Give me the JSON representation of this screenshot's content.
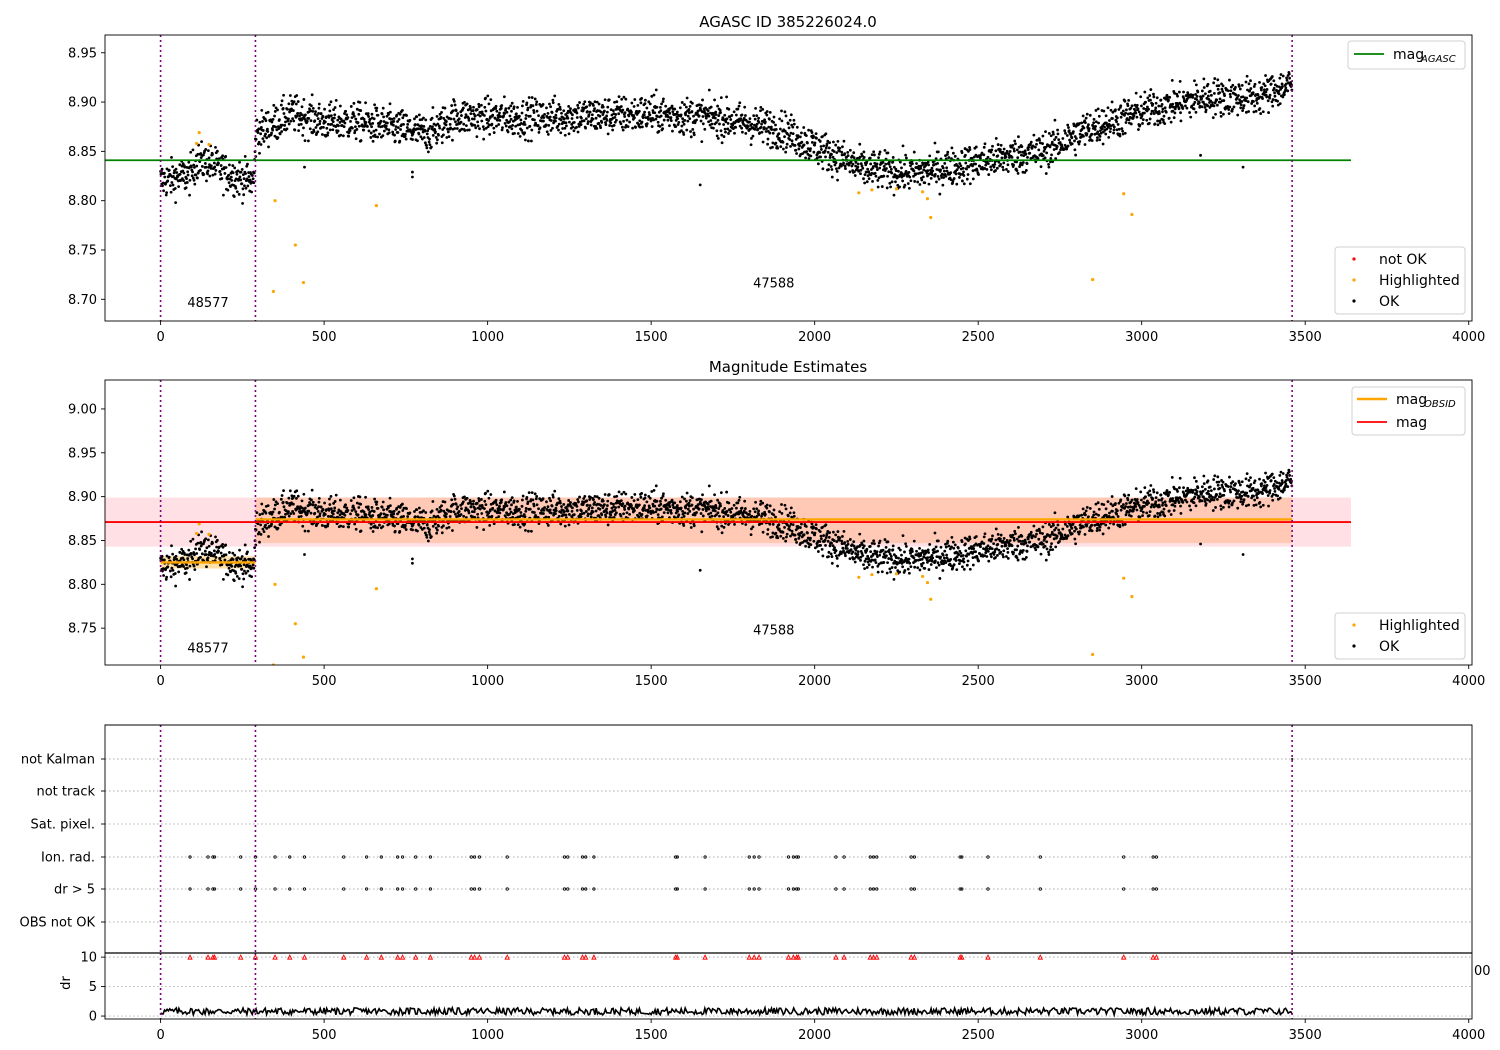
{
  "figure": {
    "title_top": "AGASC ID 385226024.0",
    "title_mid": "Magnitude Estimates"
  },
  "chart_data": [
    {
      "type": "scatter",
      "title": "AGASC ID 385226024.0",
      "xlim": [
        -170,
        4010
      ],
      "ylim": [
        8.678,
        8.968
      ],
      "xticks": [
        0,
        500,
        1000,
        1500,
        2000,
        2500,
        3000,
        3500,
        4000
      ],
      "yticks": [
        8.7,
        8.75,
        8.8,
        8.85,
        8.9,
        8.95
      ],
      "ytick_format": 2,
      "obsid_boundaries": [
        0,
        290,
        3460
      ],
      "obsid_labels": [
        {
          "text": "48577",
          "x": 145,
          "y": 8.692
        },
        {
          "text": "47588",
          "x": 1875,
          "y": 8.712
        }
      ],
      "hlines": [
        {
          "name": "mag",
          "sub": "AGASC",
          "y": 8.841,
          "x": [
            -170,
            3640
          ],
          "color": "#008000"
        }
      ],
      "series": [
        {
          "name": "not OK",
          "color": "#ff0000"
        },
        {
          "name": "Highlighted",
          "color": "#ffa500"
        },
        {
          "name": "OK",
          "color": "#000000"
        }
      ],
      "ok_trend": [
        [
          0,
          8.82
        ],
        [
          90,
          8.826
        ],
        [
          110,
          8.84
        ],
        [
          150,
          8.838
        ],
        [
          200,
          8.828
        ],
        [
          250,
          8.822
        ],
        [
          285,
          8.82
        ],
        [
          292,
          8.868
        ],
        [
          400,
          8.888
        ],
        [
          500,
          8.88
        ],
        [
          600,
          8.88
        ],
        [
          700,
          8.875
        ],
        [
          820,
          8.868
        ],
        [
          900,
          8.885
        ],
        [
          1100,
          8.884
        ],
        [
          1300,
          8.886
        ],
        [
          1500,
          8.888
        ],
        [
          1700,
          8.884
        ],
        [
          1900,
          8.872
        ],
        [
          2000,
          8.855
        ],
        [
          2150,
          8.832
        ],
        [
          2300,
          8.828
        ],
        [
          2450,
          8.836
        ],
        [
          2600,
          8.845
        ],
        [
          2700,
          8.85
        ],
        [
          2850,
          8.875
        ],
        [
          3000,
          8.89
        ],
        [
          3200,
          8.905
        ],
        [
          3350,
          8.905
        ],
        [
          3460,
          8.918
        ]
      ],
      "highlighted_points": [
        [
          110,
          8.858
        ],
        [
          118,
          8.869
        ],
        [
          148,
          8.857
        ],
        [
          350,
          8.8
        ],
        [
          345,
          8.708
        ],
        [
          412,
          8.755
        ],
        [
          437,
          8.717
        ],
        [
          660,
          8.795
        ],
        [
          2135,
          8.808
        ],
        [
          2175,
          8.811
        ],
        [
          2250,
          8.812
        ],
        [
          2330,
          8.809
        ],
        [
          2345,
          8.802
        ],
        [
          2355,
          8.783
        ],
        [
          2850,
          8.72
        ],
        [
          2945,
          8.807
        ],
        [
          2970,
          8.786
        ]
      ],
      "outlier_ok_points": [
        [
          1650,
          8.816
        ],
        [
          3180,
          8.846
        ],
        [
          3310,
          8.834
        ],
        [
          770,
          8.824
        ],
        [
          770,
          8.829
        ],
        [
          440,
          8.834
        ]
      ],
      "legend": "lower-right, mag_AGASC upper-right"
    },
    {
      "type": "scatter",
      "title": "Magnitude Estimates",
      "xlim": [
        -170,
        4010
      ],
      "ylim": [
        8.708,
        9.033
      ],
      "xticks": [
        0,
        500,
        1000,
        1500,
        2000,
        2500,
        3000,
        3500,
        4000
      ],
      "yticks": [
        8.75,
        8.8,
        8.85,
        8.9,
        8.95,
        9.0
      ],
      "ytick_format": 2,
      "obsid_boundaries": [
        0,
        290,
        3460
      ],
      "obsid_labels": [
        {
          "text": "48577",
          "x": 145,
          "y": 8.722
        },
        {
          "text": "47588",
          "x": 1875,
          "y": 8.743
        }
      ],
      "bands": [
        {
          "x": [
            -170,
            3640
          ],
          "y": [
            8.843,
            8.899
          ],
          "color": "rgba(255,105,125,0.20)"
        },
        {
          "x": [
            290,
            3460
          ],
          "y": [
            8.847,
            8.899
          ],
          "color": "rgba(255,140,60,0.28)"
        },
        {
          "x": [
            0,
            290
          ],
          "y": [
            8.818,
            8.832
          ],
          "color": "rgba(255,165,0,0.35)"
        }
      ],
      "hlines": [
        {
          "name": "mag",
          "sub": "OBSID",
          "segments": [
            {
              "x": [
                0,
                290
              ],
              "y": 8.825
            },
            {
              "x": [
                290,
                3460
              ],
              "y": 8.874
            }
          ],
          "color": "#ffa500"
        },
        {
          "name": "mag",
          "sub": "",
          "y": 8.871,
          "x": [
            -170,
            3640
          ],
          "color": "#ff0000"
        }
      ],
      "series": [
        {
          "name": "Highlighted",
          "color": "#ffa500"
        },
        {
          "name": "OK",
          "color": "#000000"
        }
      ],
      "legend": "lower-right, mag lines upper-right"
    },
    {
      "type": "scatter",
      "title": "",
      "xlim": [
        -170,
        4010
      ],
      "categories": [
        "OBS not OK",
        "dr > 5",
        "Ion. rad.",
        "Sat. pixel.",
        "not track",
        "not Kalman"
      ],
      "flag_x": [
        90,
        145,
        160,
        165,
        245,
        290,
        350,
        395,
        440,
        560,
        630,
        675,
        725,
        740,
        780,
        825,
        950,
        960,
        975,
        1060,
        1235,
        1245,
        1290,
        1300,
        1325,
        1575,
        1580,
        1665,
        1800,
        1815,
        1830,
        1920,
        1935,
        1945,
        1950,
        2065,
        2090,
        2170,
        2180,
        2190,
        2295,
        2305,
        2445,
        2450,
        2530,
        2690,
        2945,
        3035,
        3045
      ],
      "flag_rows": [
        "dr > 5",
        "Ion. rad."
      ],
      "not_kalman_x": [
        3460
      ]
    },
    {
      "type": "line",
      "ylabel": "dr",
      "xlim": [
        -170,
        4010
      ],
      "ylim": [
        -0.5,
        10.7
      ],
      "yticks": [
        0,
        5,
        10
      ],
      "xticks": [
        0,
        500,
        1000,
        1500,
        2000,
        2500,
        3000,
        3500,
        4000
      ],
      "threshold": 10,
      "dr_typical": [
        0.2,
        1.4
      ],
      "clipped_tick_fragment": "00"
    }
  ]
}
